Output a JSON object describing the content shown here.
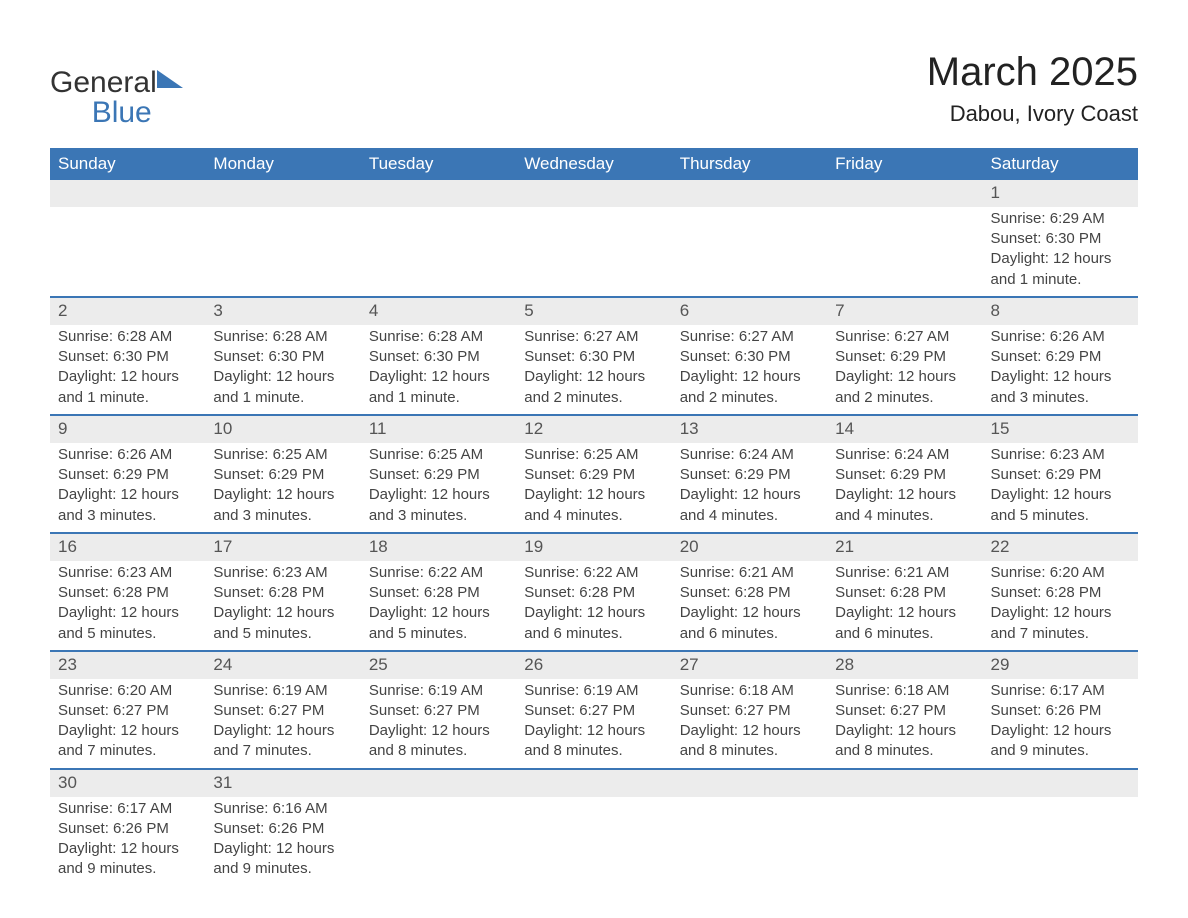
{
  "logo": {
    "word1": "General",
    "word2": "Blue"
  },
  "title": "March 2025",
  "location": "Dabou, Ivory Coast",
  "header_bg": "#3b76b5",
  "daynum_bg": "#ececec",
  "text_color": "#444444",
  "days_of_week": [
    "Sunday",
    "Monday",
    "Tuesday",
    "Wednesday",
    "Thursday",
    "Friday",
    "Saturday"
  ],
  "weeks": [
    [
      null,
      null,
      null,
      null,
      null,
      null,
      {
        "n": "1",
        "sunrise": "Sunrise: 6:29 AM",
        "sunset": "Sunset: 6:30 PM",
        "daylight": "Daylight: 12 hours and 1 minute."
      }
    ],
    [
      {
        "n": "2",
        "sunrise": "Sunrise: 6:28 AM",
        "sunset": "Sunset: 6:30 PM",
        "daylight": "Daylight: 12 hours and 1 minute."
      },
      {
        "n": "3",
        "sunrise": "Sunrise: 6:28 AM",
        "sunset": "Sunset: 6:30 PM",
        "daylight": "Daylight: 12 hours and 1 minute."
      },
      {
        "n": "4",
        "sunrise": "Sunrise: 6:28 AM",
        "sunset": "Sunset: 6:30 PM",
        "daylight": "Daylight: 12 hours and 1 minute."
      },
      {
        "n": "5",
        "sunrise": "Sunrise: 6:27 AM",
        "sunset": "Sunset: 6:30 PM",
        "daylight": "Daylight: 12 hours and 2 minutes."
      },
      {
        "n": "6",
        "sunrise": "Sunrise: 6:27 AM",
        "sunset": "Sunset: 6:30 PM",
        "daylight": "Daylight: 12 hours and 2 minutes."
      },
      {
        "n": "7",
        "sunrise": "Sunrise: 6:27 AM",
        "sunset": "Sunset: 6:29 PM",
        "daylight": "Daylight: 12 hours and 2 minutes."
      },
      {
        "n": "8",
        "sunrise": "Sunrise: 6:26 AM",
        "sunset": "Sunset: 6:29 PM",
        "daylight": "Daylight: 12 hours and 3 minutes."
      }
    ],
    [
      {
        "n": "9",
        "sunrise": "Sunrise: 6:26 AM",
        "sunset": "Sunset: 6:29 PM",
        "daylight": "Daylight: 12 hours and 3 minutes."
      },
      {
        "n": "10",
        "sunrise": "Sunrise: 6:25 AM",
        "sunset": "Sunset: 6:29 PM",
        "daylight": "Daylight: 12 hours and 3 minutes."
      },
      {
        "n": "11",
        "sunrise": "Sunrise: 6:25 AM",
        "sunset": "Sunset: 6:29 PM",
        "daylight": "Daylight: 12 hours and 3 minutes."
      },
      {
        "n": "12",
        "sunrise": "Sunrise: 6:25 AM",
        "sunset": "Sunset: 6:29 PM",
        "daylight": "Daylight: 12 hours and 4 minutes."
      },
      {
        "n": "13",
        "sunrise": "Sunrise: 6:24 AM",
        "sunset": "Sunset: 6:29 PM",
        "daylight": "Daylight: 12 hours and 4 minutes."
      },
      {
        "n": "14",
        "sunrise": "Sunrise: 6:24 AM",
        "sunset": "Sunset: 6:29 PM",
        "daylight": "Daylight: 12 hours and 4 minutes."
      },
      {
        "n": "15",
        "sunrise": "Sunrise: 6:23 AM",
        "sunset": "Sunset: 6:29 PM",
        "daylight": "Daylight: 12 hours and 5 minutes."
      }
    ],
    [
      {
        "n": "16",
        "sunrise": "Sunrise: 6:23 AM",
        "sunset": "Sunset: 6:28 PM",
        "daylight": "Daylight: 12 hours and 5 minutes."
      },
      {
        "n": "17",
        "sunrise": "Sunrise: 6:23 AM",
        "sunset": "Sunset: 6:28 PM",
        "daylight": "Daylight: 12 hours and 5 minutes."
      },
      {
        "n": "18",
        "sunrise": "Sunrise: 6:22 AM",
        "sunset": "Sunset: 6:28 PM",
        "daylight": "Daylight: 12 hours and 5 minutes."
      },
      {
        "n": "19",
        "sunrise": "Sunrise: 6:22 AM",
        "sunset": "Sunset: 6:28 PM",
        "daylight": "Daylight: 12 hours and 6 minutes."
      },
      {
        "n": "20",
        "sunrise": "Sunrise: 6:21 AM",
        "sunset": "Sunset: 6:28 PM",
        "daylight": "Daylight: 12 hours and 6 minutes."
      },
      {
        "n": "21",
        "sunrise": "Sunrise: 6:21 AM",
        "sunset": "Sunset: 6:28 PM",
        "daylight": "Daylight: 12 hours and 6 minutes."
      },
      {
        "n": "22",
        "sunrise": "Sunrise: 6:20 AM",
        "sunset": "Sunset: 6:28 PM",
        "daylight": "Daylight: 12 hours and 7 minutes."
      }
    ],
    [
      {
        "n": "23",
        "sunrise": "Sunrise: 6:20 AM",
        "sunset": "Sunset: 6:27 PM",
        "daylight": "Daylight: 12 hours and 7 minutes."
      },
      {
        "n": "24",
        "sunrise": "Sunrise: 6:19 AM",
        "sunset": "Sunset: 6:27 PM",
        "daylight": "Daylight: 12 hours and 7 minutes."
      },
      {
        "n": "25",
        "sunrise": "Sunrise: 6:19 AM",
        "sunset": "Sunset: 6:27 PM",
        "daylight": "Daylight: 12 hours and 8 minutes."
      },
      {
        "n": "26",
        "sunrise": "Sunrise: 6:19 AM",
        "sunset": "Sunset: 6:27 PM",
        "daylight": "Daylight: 12 hours and 8 minutes."
      },
      {
        "n": "27",
        "sunrise": "Sunrise: 6:18 AM",
        "sunset": "Sunset: 6:27 PM",
        "daylight": "Daylight: 12 hours and 8 minutes."
      },
      {
        "n": "28",
        "sunrise": "Sunrise: 6:18 AM",
        "sunset": "Sunset: 6:27 PM",
        "daylight": "Daylight: 12 hours and 8 minutes."
      },
      {
        "n": "29",
        "sunrise": "Sunrise: 6:17 AM",
        "sunset": "Sunset: 6:26 PM",
        "daylight": "Daylight: 12 hours and 9 minutes."
      }
    ],
    [
      {
        "n": "30",
        "sunrise": "Sunrise: 6:17 AM",
        "sunset": "Sunset: 6:26 PM",
        "daylight": "Daylight: 12 hours and 9 minutes."
      },
      {
        "n": "31",
        "sunrise": "Sunrise: 6:16 AM",
        "sunset": "Sunset: 6:26 PM",
        "daylight": "Daylight: 12 hours and 9 minutes."
      },
      null,
      null,
      null,
      null,
      null
    ]
  ]
}
